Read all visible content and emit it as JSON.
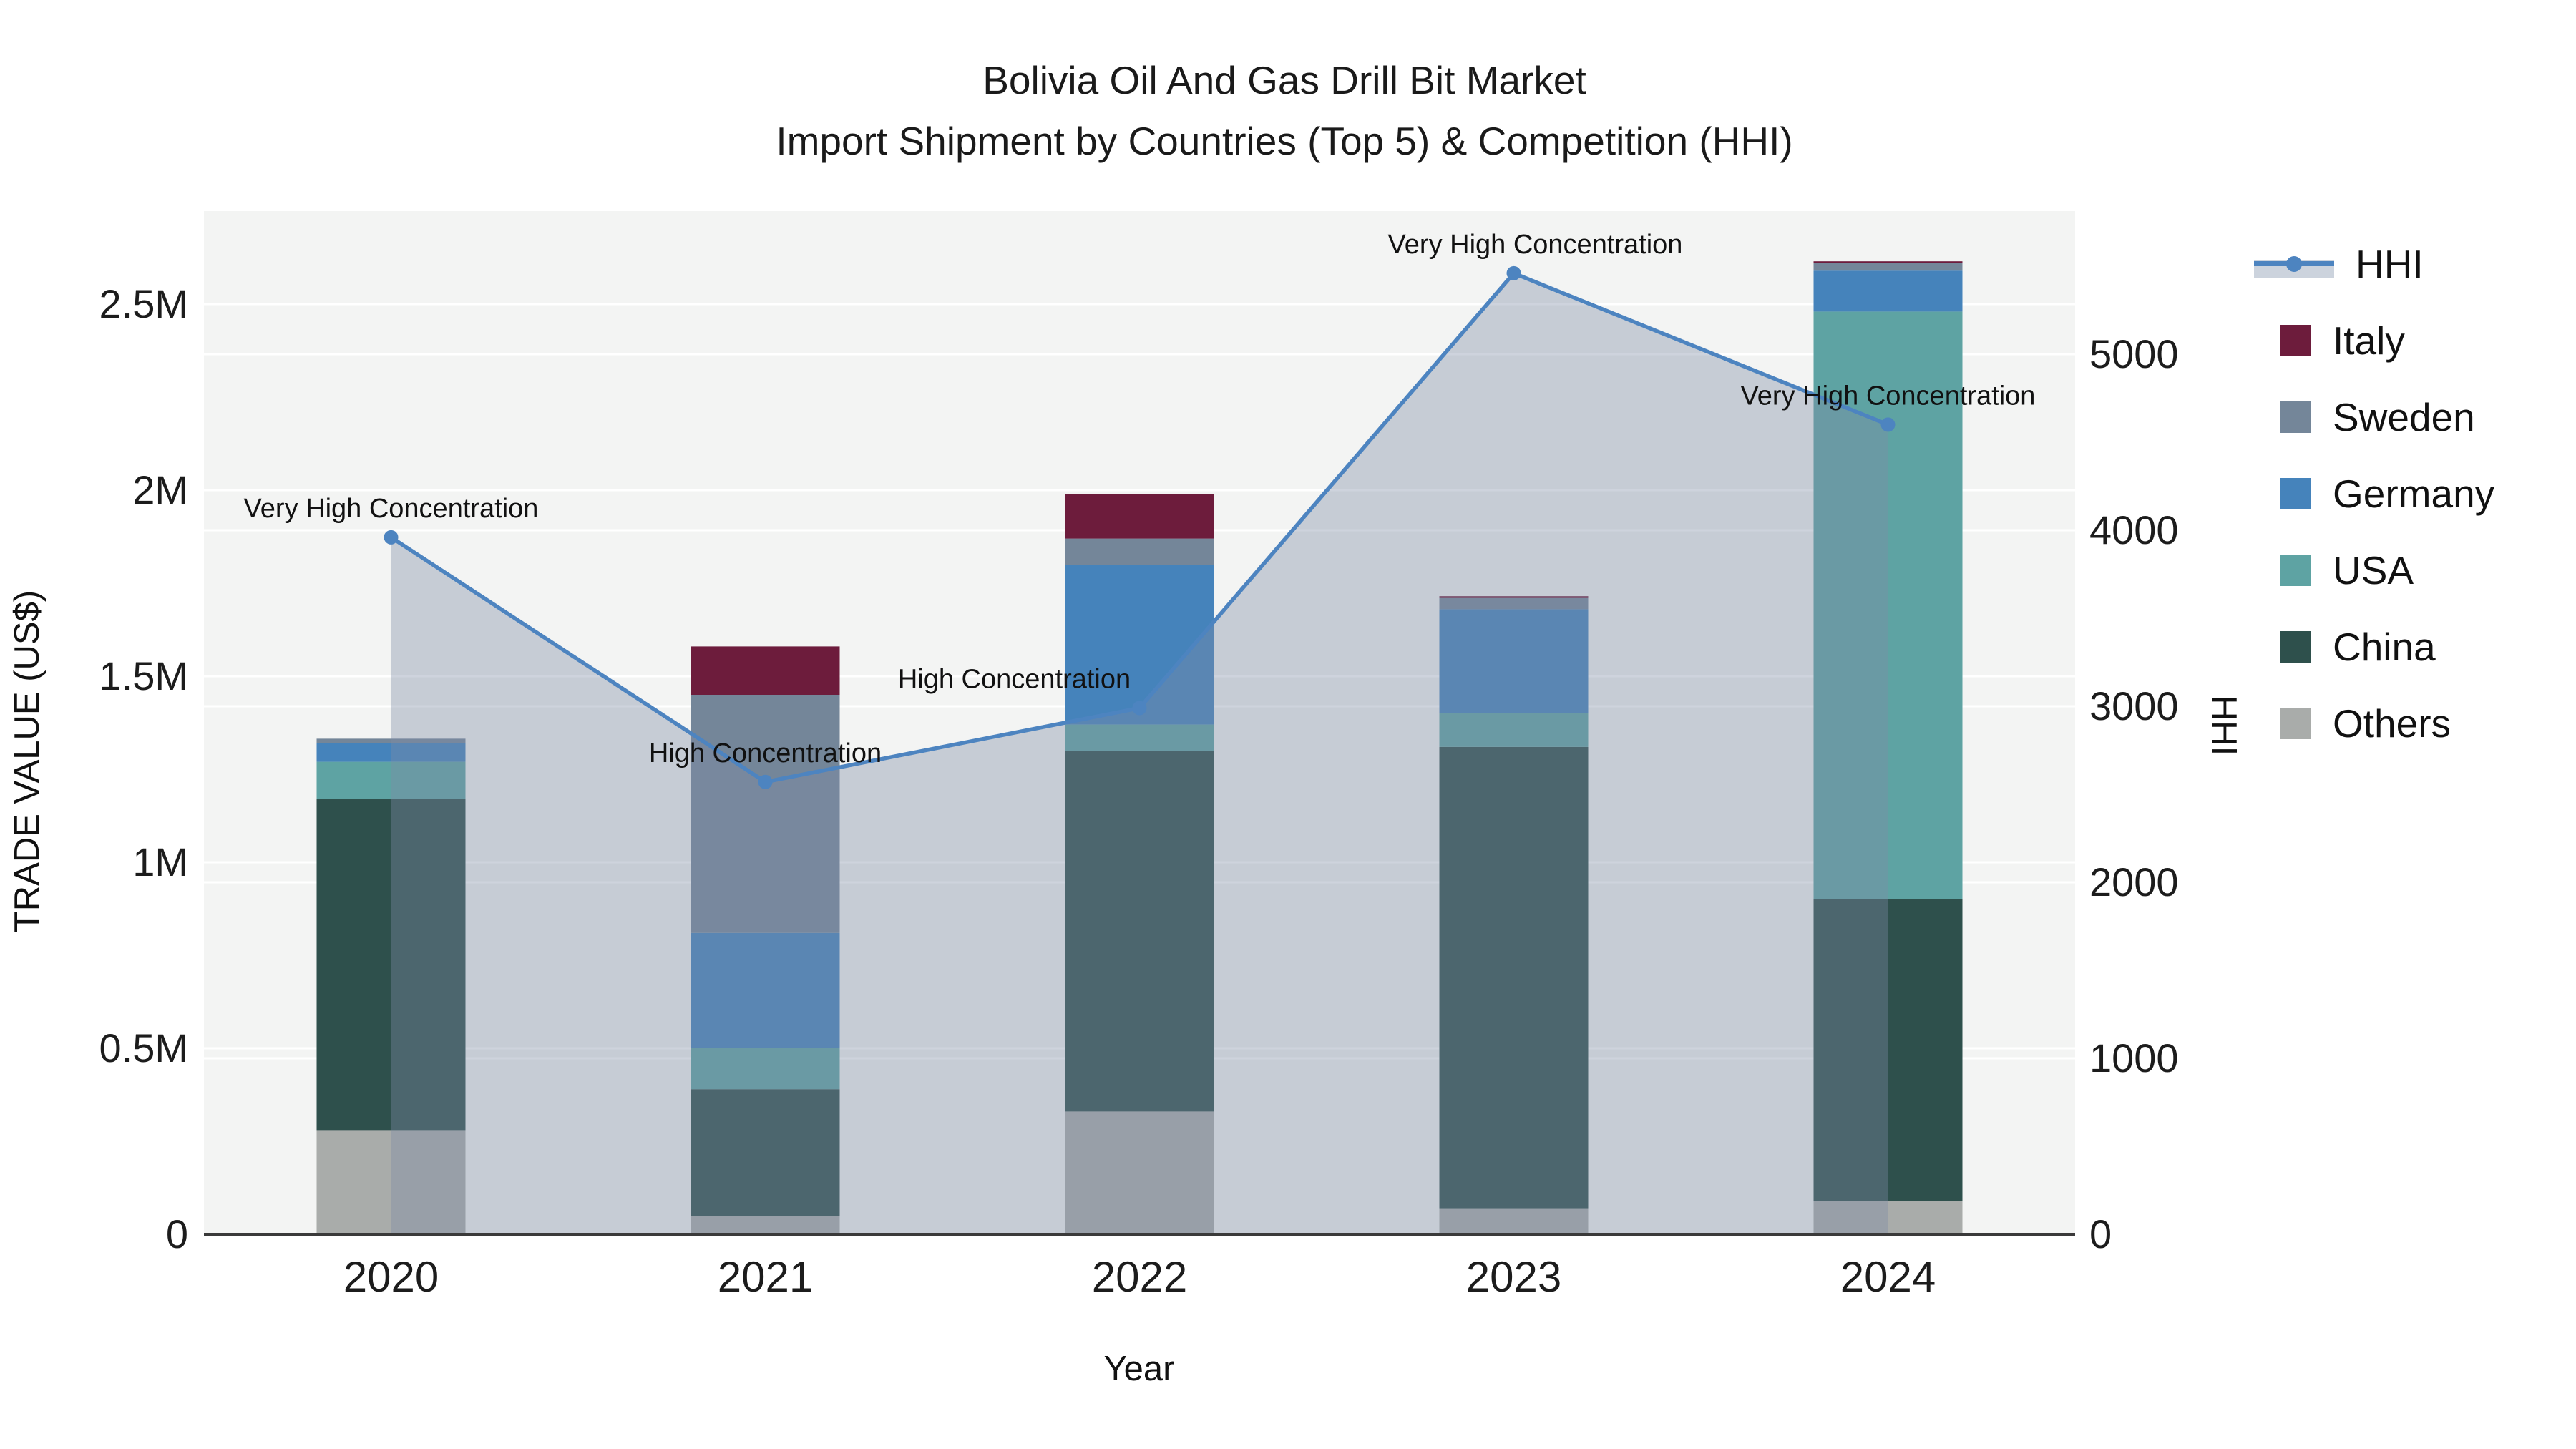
{
  "chart": {
    "title_line1": "Bolivia Oil And Gas Drill Bit Market",
    "title_line2": "Import Shipment by Countries (Top 5) & Competition (HHI)"
  },
  "axes": {
    "left_title": "TRADE VALUE (US$)",
    "right_title": "HHI",
    "x_title": "Year"
  },
  "legend": {
    "items": [
      {
        "label": "HHI",
        "color": "#4d84c0",
        "type": "line"
      },
      {
        "label": "Italy",
        "color": "#6d1c3c",
        "type": "box"
      },
      {
        "label": "Sweden",
        "color": "#748699",
        "type": "box"
      },
      {
        "label": "Germany",
        "color": "#4583bb",
        "type": "box"
      },
      {
        "label": "USA",
        "color": "#5ea3a3",
        "type": "box"
      },
      {
        "label": "China",
        "color": "#2e504c",
        "type": "box"
      },
      {
        "label": "Others",
        "color": "#a9acaa",
        "type": "box"
      }
    ]
  },
  "colors": {
    "plot_background": "#f3f4f3",
    "gridline": "#ffffff",
    "axis_line": "#3a3a3a",
    "hhi_line": "#4d84c0",
    "hhi_area": "#7d8ca5",
    "hhi_area_opacity": 0.38,
    "annotation_text": "#111111",
    "tick_text": "#1c1c1c"
  },
  "chart_data": {
    "type": "bar+line",
    "title": "Bolivia Oil And Gas Drill Bit Market — Import Shipment by Countries (Top 5) & Competition (HHI)",
    "categories": [
      "2020",
      "2021",
      "2022",
      "2023",
      "2024"
    ],
    "bar_value_unit": "US$",
    "stack_order_bottom_to_top": [
      "Others",
      "China",
      "USA",
      "Germany",
      "Sweden",
      "Italy"
    ],
    "series": [
      {
        "name": "Others",
        "color": "#a9acaa",
        "values": [
          280000,
          50000,
          330000,
          70000,
          90000
        ]
      },
      {
        "name": "China",
        "color": "#2e504c",
        "values": [
          890000,
          340000,
          970000,
          1240000,
          810000
        ]
      },
      {
        "name": "USA",
        "color": "#5ea3a3",
        "values": [
          100000,
          110000,
          70000,
          90000,
          1580000
        ]
      },
      {
        "name": "Germany",
        "color": "#4583bb",
        "values": [
          50000,
          310000,
          430000,
          280000,
          110000
        ]
      },
      {
        "name": "Sweden",
        "color": "#748699",
        "values": [
          12000,
          640000,
          70000,
          30000,
          20000
        ]
      },
      {
        "name": "Italy",
        "color": "#6d1c3c",
        "values": [
          0,
          130000,
          120000,
          5000,
          5000
        ]
      }
    ],
    "bar_totals": [
      1332000,
      1580000,
      1990000,
      1715000,
      2615000
    ],
    "line_series": {
      "name": "HHI",
      "axis": "right",
      "values": [
        3960,
        2570,
        2990,
        5460,
        4600
      ]
    },
    "annotations": [
      {
        "x": "2020",
        "text": "Very High Concentration"
      },
      {
        "x": "2021",
        "text": "High Concentration"
      },
      {
        "x": "2022",
        "text": "High Concentration"
      },
      {
        "x": "2023",
        "text": "Very High Concentration"
      },
      {
        "x": "2024",
        "text": "Very High Concentration"
      }
    ],
    "left_axis": {
      "label": "TRADE VALUE (US$)",
      "ticks": [
        0,
        500000,
        1000000,
        1500000,
        2000000,
        2500000
      ],
      "tick_labels": [
        "0",
        "0.5M",
        "1M",
        "1.5M",
        "2M",
        "2.5M"
      ],
      "range": [
        0,
        2750000
      ]
    },
    "right_axis": {
      "label": "HHI",
      "ticks": [
        0,
        1000,
        2000,
        3000,
        4000,
        5000
      ],
      "tick_labels": [
        "0",
        "1000",
        "2000",
        "3000",
        "4000",
        "5000"
      ],
      "range": [
        0,
        5813
      ]
    },
    "x_axis": {
      "label": "Year"
    },
    "grid": true,
    "legend_position": "right-outside"
  }
}
